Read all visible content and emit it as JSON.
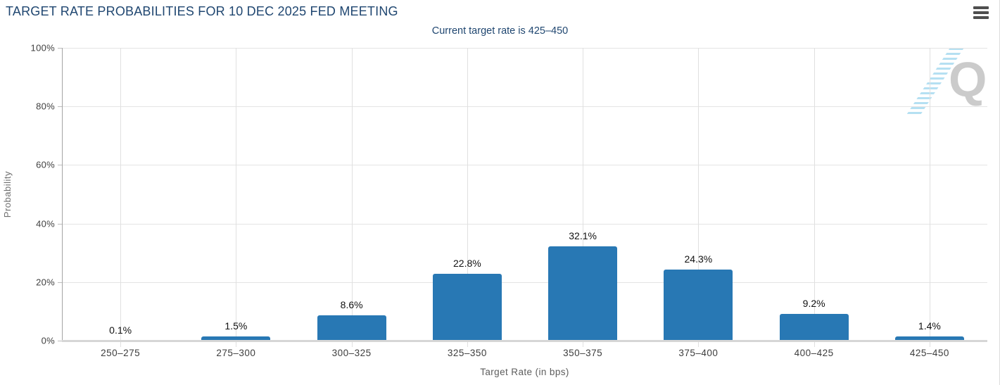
{
  "header": {
    "title": "TARGET RATE PROBABILITIES FOR 10 DEC 2025 FED MEETING",
    "subtitle": "Current target rate is 425–450"
  },
  "menu": {
    "icon": "hamburger-icon"
  },
  "watermark": {
    "letter": "Q"
  },
  "colors": {
    "bar": "#2878b4",
    "title_navy": "#1f4670",
    "gridline": "#e4e4e4",
    "axis_line": "#a3a3a3",
    "baseline": "#d6d6d6",
    "value_label": "#111111",
    "tick_label": "#3d3d3d",
    "axis_title": "#5d5d5d",
    "watermark_gray": "#cbcbcb",
    "watermark_blue": "#b5e0f2"
  },
  "chart_data": {
    "type": "bar",
    "title": "TARGET RATE PROBABILITIES FOR 10 DEC 2025 FED MEETING",
    "subtitle": "Current target rate is 425–450",
    "categories": [
      "250–275",
      "275–300",
      "300–325",
      "325–350",
      "350–375",
      "375–400",
      "400–425",
      "425–450"
    ],
    "values": [
      0.1,
      1.5,
      8.6,
      22.8,
      32.1,
      24.3,
      9.2,
      1.4
    ],
    "value_labels": [
      "0.1%",
      "1.5%",
      "8.6%",
      "22.8%",
      "32.1%",
      "24.3%",
      "9.2%",
      "1.4%"
    ],
    "xlabel": "Target Rate (in bps)",
    "ylabel": "Probability",
    "ylim": [
      0,
      100
    ],
    "yticks": [
      0,
      20,
      40,
      60,
      80,
      100
    ],
    "ytick_labels": [
      "0%",
      "20%",
      "40%",
      "60%",
      "80%",
      "100%"
    ],
    "grid": true,
    "legend": false,
    "bar_color": "#2878b4"
  }
}
